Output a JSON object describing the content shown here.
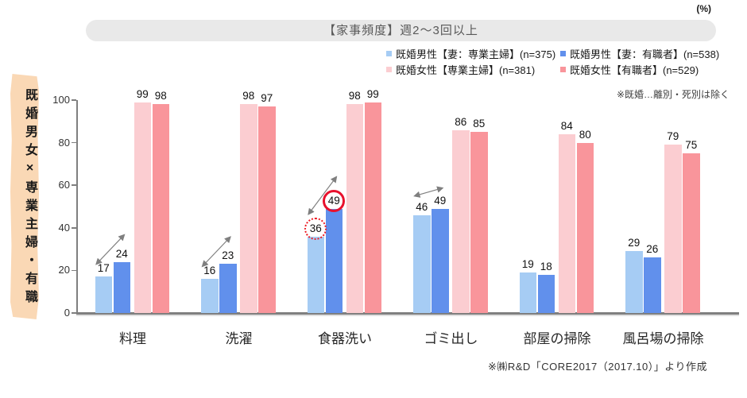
{
  "page": {
    "percent_label": "(%)",
    "side_banner": "既婚男女×専業主婦・有職",
    "note": "※既婚…離別・死別は除く",
    "source": "※㈱R&D「CORE2017（2017.10）」より作成"
  },
  "colors": {
    "banner_bg": "#FAD8B5",
    "title_bg": "#E9E9E9",
    "axis": "#7f7f7f",
    "arrow": "#7f7f7f",
    "highlight_red": "#E8112D"
  },
  "chart_data": {
    "type": "bar",
    "title": "【家事頻度】週2～3回以上",
    "value_unit": "%",
    "categories": [
      "料理",
      "洗濯",
      "食器洗い",
      "ゴミ出し",
      "部屋の掃除",
      "風呂場の掃除"
    ],
    "series": [
      {
        "name": "既婚男性【妻：専業主婦】(n=375)",
        "color": "#A6CCF4",
        "values": [
          17,
          16,
          36,
          46,
          19,
          29
        ]
      },
      {
        "name": "既婚男性【妻：有職者】(n=538)",
        "color": "#6190EC",
        "values": [
          24,
          23,
          49,
          49,
          18,
          26
        ]
      },
      {
        "name": "既婚女性【専業主婦】(n=381)",
        "color": "#FBCDD1",
        "values": [
          99,
          98,
          98,
          86,
          84,
          79
        ]
      },
      {
        "name": "既婚女性【有職者】(n=529)",
        "color": "#F9959B",
        "values": [
          98,
          97,
          99,
          85,
          80,
          75
        ]
      }
    ],
    "ylim": [
      0,
      100
    ],
    "yticks": [
      0,
      20,
      40,
      60,
      80,
      100
    ],
    "grid": false,
    "legend_position": "top-right",
    "annotations": {
      "arrows": [
        {
          "category": 0,
          "from_series": 0,
          "to_series": 1
        },
        {
          "category": 1,
          "from_series": 0,
          "to_series": 1
        },
        {
          "category": 2,
          "from_series": 0,
          "to_series": 1
        },
        {
          "category": 3,
          "from_series": 0,
          "to_series": 1,
          "flat": true
        }
      ],
      "circles": [
        {
          "category": 2,
          "series": 0,
          "value": 36,
          "style": "dotted"
        },
        {
          "category": 2,
          "series": 1,
          "value": 49,
          "style": "solid"
        }
      ]
    }
  }
}
